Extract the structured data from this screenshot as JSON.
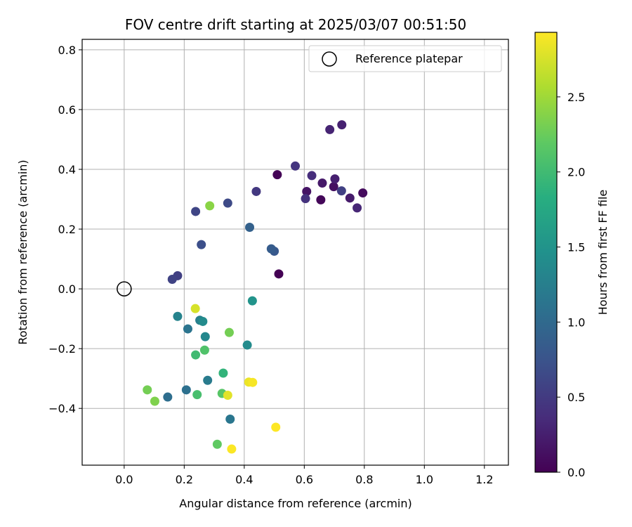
{
  "chart_data": {
    "type": "scatter",
    "title": "FOV centre drift starting at 2025/03/07 00:51:50",
    "xlabel": "Angular distance from reference (arcmin)",
    "ylabel": "Rotation from reference (arcmin)",
    "xlim": [
      -0.14,
      1.28
    ],
    "ylim": [
      -0.59,
      0.835
    ],
    "xticks": [
      0.0,
      0.2,
      0.4,
      0.6,
      0.8,
      1.0,
      1.2
    ],
    "xtick_labels": [
      "0.0",
      "0.2",
      "0.4",
      "0.6",
      "0.8",
      "1.0",
      "1.2"
    ],
    "yticks": [
      -0.4,
      -0.2,
      0.0,
      0.2,
      0.4,
      0.6,
      0.8
    ],
    "ytick_labels": [
      "−0.4",
      "−0.2",
      "0.0",
      "0.2",
      "0.4",
      "0.6",
      "0.8"
    ],
    "grid": true,
    "legend": {
      "position": "top-right",
      "entries": [
        "Reference platepar"
      ]
    },
    "reference_point": {
      "label": "Reference platepar",
      "x": 0.0,
      "y": 0.0,
      "marker": "hollow-circle"
    },
    "colorbar": {
      "label": "Hours from first FF file",
      "colormap": "viridis",
      "range": [
        0.0,
        2.93
      ],
      "ticks": [
        0.0,
        0.5,
        1.0,
        1.5,
        2.0,
        2.5
      ],
      "tick_labels": [
        "0.0",
        "0.5",
        "1.0",
        "1.5",
        "2.0",
        "2.5"
      ]
    },
    "points": [
      {
        "x": 0.515,
        "y": 0.05,
        "hours": 0.0
      },
      {
        "x": 0.51,
        "y": 0.382,
        "hours": 0.02
      },
      {
        "x": 0.655,
        "y": 0.298,
        "hours": 0.05
      },
      {
        "x": 0.795,
        "y": 0.321,
        "hours": 0.08
      },
      {
        "x": 0.698,
        "y": 0.342,
        "hours": 0.12
      },
      {
        "x": 0.608,
        "y": 0.326,
        "hours": 0.16
      },
      {
        "x": 0.66,
        "y": 0.354,
        "hours": 0.2
      },
      {
        "x": 0.752,
        "y": 0.304,
        "hours": 0.22
      },
      {
        "x": 0.702,
        "y": 0.368,
        "hours": 0.25
      },
      {
        "x": 0.725,
        "y": 0.549,
        "hours": 0.27
      },
      {
        "x": 0.685,
        "y": 0.533,
        "hours": 0.29
      },
      {
        "x": 0.776,
        "y": 0.271,
        "hours": 0.32
      },
      {
        "x": 0.625,
        "y": 0.379,
        "hours": 0.38
      },
      {
        "x": 0.604,
        "y": 0.302,
        "hours": 0.42
      },
      {
        "x": 0.57,
        "y": 0.411,
        "hours": 0.45
      },
      {
        "x": 0.44,
        "y": 0.326,
        "hours": 0.48
      },
      {
        "x": 0.724,
        "y": 0.328,
        "hours": 0.55
      },
      {
        "x": 0.178,
        "y": 0.044,
        "hours": 0.55
      },
      {
        "x": 0.16,
        "y": 0.032,
        "hours": 0.58
      },
      {
        "x": 0.238,
        "y": 0.259,
        "hours": 0.6
      },
      {
        "x": 0.345,
        "y": 0.287,
        "hours": 0.65
      },
      {
        "x": 0.257,
        "y": 0.148,
        "hours": 0.7
      },
      {
        "x": 0.5,
        "y": 0.126,
        "hours": 0.8
      },
      {
        "x": 0.49,
        "y": 0.134,
        "hours": 0.85
      },
      {
        "x": 0.418,
        "y": 0.206,
        "hours": 0.9
      },
      {
        "x": 0.145,
        "y": -0.362,
        "hours": 1.05
      },
      {
        "x": 0.207,
        "y": -0.338,
        "hours": 1.08
      },
      {
        "x": 0.212,
        "y": -0.134,
        "hours": 1.12
      },
      {
        "x": 0.353,
        "y": -0.436,
        "hours": 1.15
      },
      {
        "x": 0.278,
        "y": -0.306,
        "hours": 1.2
      },
      {
        "x": 0.252,
        "y": -0.105,
        "hours": 1.25
      },
      {
        "x": 0.178,
        "y": -0.092,
        "hours": 1.3
      },
      {
        "x": 0.27,
        "y": -0.16,
        "hours": 1.35
      },
      {
        "x": 0.262,
        "y": -0.109,
        "hours": 1.4
      },
      {
        "x": 0.41,
        "y": -0.188,
        "hours": 1.4
      },
      {
        "x": 0.427,
        "y": -0.04,
        "hours": 1.5
      },
      {
        "x": 0.33,
        "y": -0.282,
        "hours": 1.9
      },
      {
        "x": 0.238,
        "y": -0.221,
        "hours": 2.0
      },
      {
        "x": 0.243,
        "y": -0.354,
        "hours": 2.05
      },
      {
        "x": 0.268,
        "y": -0.205,
        "hours": 2.1
      },
      {
        "x": 0.326,
        "y": -0.35,
        "hours": 2.15
      },
      {
        "x": 0.31,
        "y": -0.52,
        "hours": 2.2
      },
      {
        "x": 0.077,
        "y": -0.338,
        "hours": 2.3
      },
      {
        "x": 0.35,
        "y": -0.146,
        "hours": 2.3
      },
      {
        "x": 0.102,
        "y": -0.376,
        "hours": 2.35
      },
      {
        "x": 0.285,
        "y": 0.278,
        "hours": 2.4
      },
      {
        "x": 0.237,
        "y": -0.066,
        "hours": 2.75
      },
      {
        "x": 0.345,
        "y": -0.356,
        "hours": 2.8
      },
      {
        "x": 0.415,
        "y": -0.312,
        "hours": 2.85
      },
      {
        "x": 0.428,
        "y": -0.313,
        "hours": 2.9
      },
      {
        "x": 0.358,
        "y": -0.536,
        "hours": 2.92
      },
      {
        "x": 0.505,
        "y": -0.463,
        "hours": 2.93
      }
    ]
  }
}
